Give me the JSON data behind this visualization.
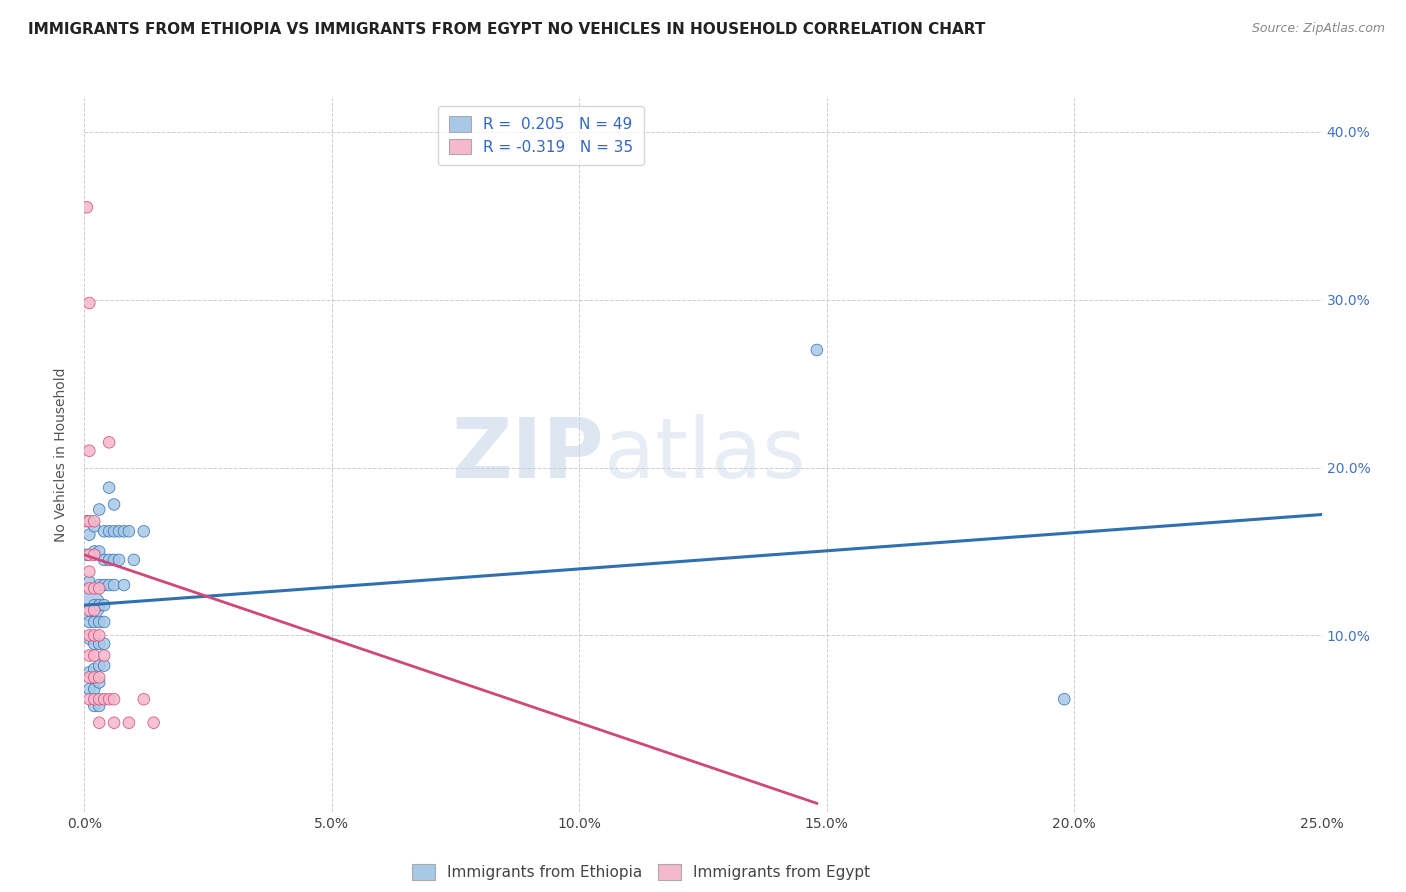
{
  "title": "IMMIGRANTS FROM ETHIOPIA VS IMMIGRANTS FROM EGYPT NO VEHICLES IN HOUSEHOLD CORRELATION CHART",
  "source": "Source: ZipAtlas.com",
  "ylabel": "No Vehicles in Household",
  "xlim": [
    0.0,
    0.25
  ],
  "ylim": [
    -0.005,
    0.42
  ],
  "xticks": [
    0.0,
    0.05,
    0.1,
    0.15,
    0.2,
    0.25
  ],
  "yticks_right": [
    0.1,
    0.2,
    0.3,
    0.4
  ],
  "ethiopia_R": 0.205,
  "ethiopia_N": 49,
  "egypt_R": -0.319,
  "egypt_N": 35,
  "legend_labels": [
    "Immigrants from Ethiopia",
    "Immigrants from Egypt"
  ],
  "ethiopia_color": "#a8c8e8",
  "egypt_color": "#f5b8cc",
  "ethiopia_line_color": "#3070b0",
  "egypt_line_color": "#d04878",
  "watermark_zip": "ZIP",
  "watermark_atlas": "atlas",
  "ethiopia_points": [
    [
      0.001,
      0.118
    ],
    [
      0.001,
      0.16
    ],
    [
      0.001,
      0.132
    ],
    [
      0.001,
      0.108
    ],
    [
      0.001,
      0.098
    ],
    [
      0.001,
      0.078
    ],
    [
      0.001,
      0.068
    ],
    [
      0.0005,
      0.148
    ],
    [
      0.002,
      0.165
    ],
    [
      0.002,
      0.15
    ],
    [
      0.002,
      0.118
    ],
    [
      0.002,
      0.108
    ],
    [
      0.002,
      0.095
    ],
    [
      0.002,
      0.08
    ],
    [
      0.002,
      0.068
    ],
    [
      0.002,
      0.058
    ],
    [
      0.003,
      0.175
    ],
    [
      0.003,
      0.15
    ],
    [
      0.003,
      0.13
    ],
    [
      0.003,
      0.118
    ],
    [
      0.003,
      0.108
    ],
    [
      0.003,
      0.095
    ],
    [
      0.003,
      0.082
    ],
    [
      0.003,
      0.072
    ],
    [
      0.003,
      0.058
    ],
    [
      0.004,
      0.162
    ],
    [
      0.004,
      0.145
    ],
    [
      0.004,
      0.13
    ],
    [
      0.004,
      0.118
    ],
    [
      0.004,
      0.108
    ],
    [
      0.004,
      0.095
    ],
    [
      0.004,
      0.082
    ],
    [
      0.005,
      0.188
    ],
    [
      0.005,
      0.162
    ],
    [
      0.005,
      0.145
    ],
    [
      0.005,
      0.13
    ],
    [
      0.006,
      0.178
    ],
    [
      0.006,
      0.162
    ],
    [
      0.006,
      0.145
    ],
    [
      0.006,
      0.13
    ],
    [
      0.007,
      0.162
    ],
    [
      0.007,
      0.145
    ],
    [
      0.008,
      0.162
    ],
    [
      0.008,
      0.13
    ],
    [
      0.009,
      0.162
    ],
    [
      0.01,
      0.145
    ],
    [
      0.012,
      0.162
    ],
    [
      0.148,
      0.27
    ],
    [
      0.198,
      0.062
    ]
  ],
  "egypt_points": [
    [
      0.0005,
      0.355
    ],
    [
      0.0005,
      0.168
    ],
    [
      0.001,
      0.298
    ],
    [
      0.001,
      0.21
    ],
    [
      0.001,
      0.168
    ],
    [
      0.001,
      0.148
    ],
    [
      0.001,
      0.128
    ],
    [
      0.001,
      0.115
    ],
    [
      0.001,
      0.1
    ],
    [
      0.001,
      0.088
    ],
    [
      0.001,
      0.075
    ],
    [
      0.001,
      0.062
    ],
    [
      0.002,
      0.168
    ],
    [
      0.002,
      0.148
    ],
    [
      0.002,
      0.128
    ],
    [
      0.002,
      0.115
    ],
    [
      0.002,
      0.1
    ],
    [
      0.002,
      0.088
    ],
    [
      0.002,
      0.075
    ],
    [
      0.002,
      0.062
    ],
    [
      0.003,
      0.128
    ],
    [
      0.003,
      0.1
    ],
    [
      0.003,
      0.075
    ],
    [
      0.003,
      0.062
    ],
    [
      0.003,
      0.048
    ],
    [
      0.004,
      0.088
    ],
    [
      0.004,
      0.062
    ],
    [
      0.005,
      0.215
    ],
    [
      0.005,
      0.062
    ],
    [
      0.006,
      0.062
    ],
    [
      0.006,
      0.048
    ],
    [
      0.009,
      0.048
    ],
    [
      0.012,
      0.062
    ],
    [
      0.014,
      0.048
    ],
    [
      0.001,
      0.138
    ]
  ]
}
